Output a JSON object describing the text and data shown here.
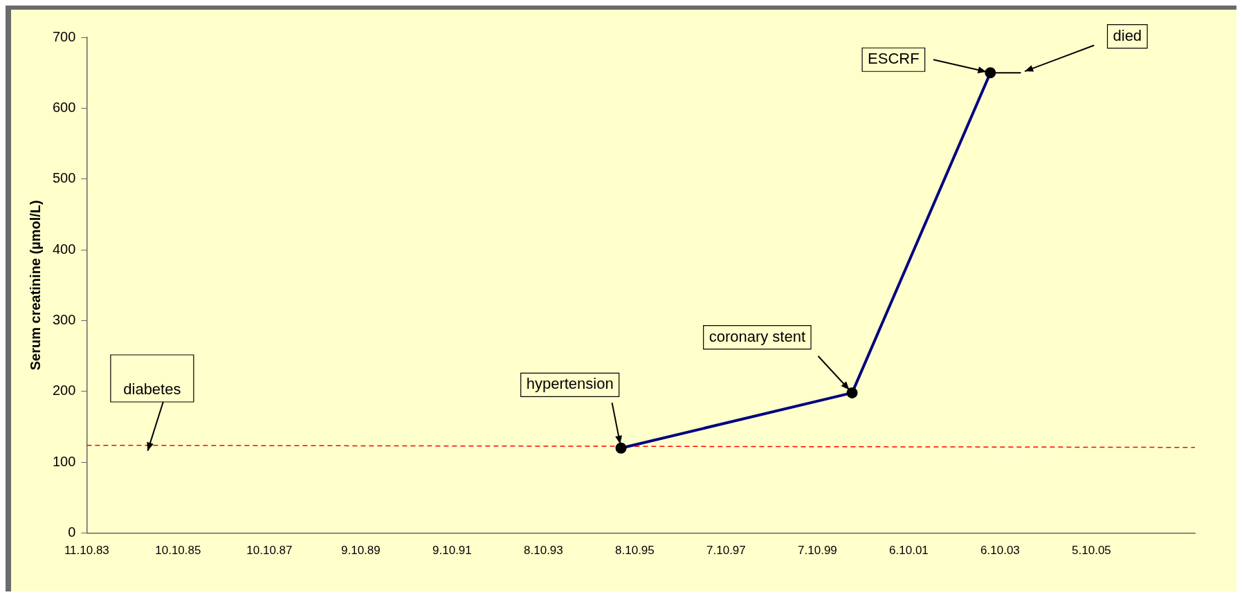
{
  "chart_data": {
    "type": "line",
    "ylabel": "Serum creatinine (µmol/L)",
    "xlim": [
      "1983-10-11",
      "2008-01-10"
    ],
    "xticks": [
      {
        "value": "1983-10-11",
        "label": "11.10.83"
      },
      {
        "value": "1985-10-10",
        "label": "10.10.85"
      },
      {
        "value": "1987-10-10",
        "label": "10.10.87"
      },
      {
        "value": "1989-10-09",
        "label": "9.10.89"
      },
      {
        "value": "1991-10-09",
        "label": "9.10.91"
      },
      {
        "value": "1993-10-08",
        "label": "8.10.93"
      },
      {
        "value": "1995-10-08",
        "label": "8.10.95"
      },
      {
        "value": "1997-10-07",
        "label": "7.10.97"
      },
      {
        "value": "1999-10-07",
        "label": "7.10.99"
      },
      {
        "value": "2001-10-06",
        "label": "6.10.01"
      },
      {
        "value": "2003-10-06",
        "label": "6.10.03"
      },
      {
        "value": "2005-10-05",
        "label": "5.10.05"
      }
    ],
    "ylim": [
      0,
      700
    ],
    "yticks": [
      0,
      100,
      200,
      300,
      400,
      500,
      600,
      700
    ],
    "grid": false,
    "legend": false,
    "series": [
      {
        "color": "#000080",
        "marker": "circle",
        "line_style": "solid",
        "x": [
          "1995-06-20",
          "2000-07-10",
          "2003-07-20"
        ],
        "values": [
          120,
          198,
          650
        ]
      },
      {
        "color": "#ff0000",
        "marker": "none",
        "line_style": "dashed",
        "x": [
          "1983-10-11",
          "2008-01-10"
        ],
        "values": [
          124,
          121
        ]
      },
      {
        "color": "#000000",
        "marker": "none",
        "line_style": "solid",
        "x": [
          "2003-08-25",
          "2004-03-20"
        ],
        "values": [
          650,
          650
        ]
      }
    ],
    "annotations": [
      "diabetes",
      {
        "text": "hypertension",
        "x": "1995-06-20",
        "y": 120
      },
      {
        "text": "coronary stent",
        "x": "2000-07-10",
        "y": 198
      },
      {
        "text": "ESCRF",
        "x": "2003-07-20",
        "y": 650
      },
      {
        "text": "died",
        "x": "2004-03-20",
        "y": 650
      }
    ]
  }
}
